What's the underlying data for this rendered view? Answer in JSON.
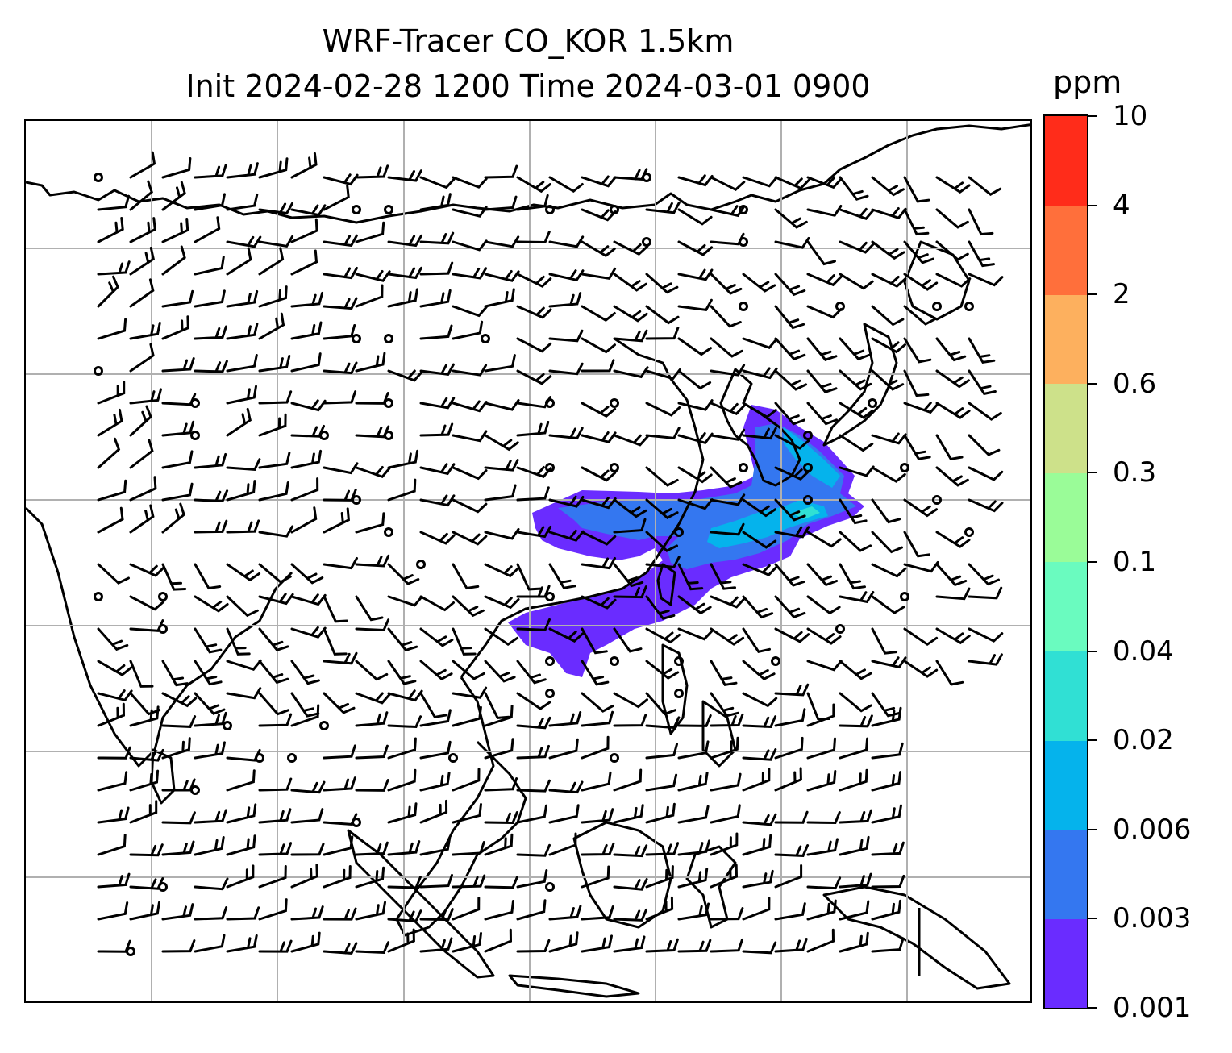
{
  "map": {
    "title_line1": "WRF-Tracer CO_KOR 1.5km",
    "title_line2": "Init 2024-02-28 1200 Time 2024-03-01 0900",
    "field": "CO_KOR tracer concentration",
    "level": "1.5km",
    "gridlines": true,
    "overlays": [
      "coastlines",
      "national borders",
      "wind barbs",
      "filled tracer contours"
    ]
  },
  "colorbar": {
    "unit": "ppm",
    "levels": [
      "0.001",
      "0.003",
      "0.006",
      "0.02",
      "0.04",
      "0.1",
      "0.3",
      "0.6",
      "2",
      "4",
      "10"
    ],
    "colors": [
      "#6a2cff",
      "#3477f0",
      "#05b3ec",
      "#30e0d4",
      "#6afbbf",
      "#9afc98",
      "#cde18a",
      "#fdb05e",
      "#ff6f3b",
      "#ff2c1a"
    ]
  },
  "legend": {
    "plume_colors": [
      "#6a2cff",
      "#3477f0",
      "#05b3ec",
      "#30e0d4"
    ]
  }
}
